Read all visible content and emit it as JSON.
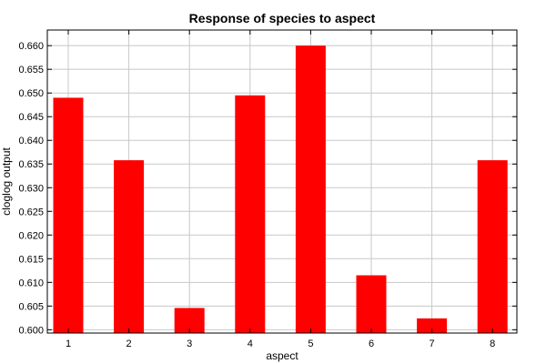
{
  "chart_data": {
    "type": "bar",
    "title": "Response of species to aspect",
    "xlabel": "aspect",
    "ylabel": "cloglog output",
    "categories": [
      "1",
      "2",
      "3",
      "4",
      "5",
      "6",
      "7",
      "8"
    ],
    "values": [
      0.649,
      0.6358,
      0.6046,
      0.6495,
      0.66,
      0.6115,
      0.6024,
      0.6358
    ],
    "ylim": [
      0.5993,
      0.6633
    ],
    "yticks": [
      "0.600",
      "0.605",
      "0.610",
      "0.615",
      "0.620",
      "0.625",
      "0.630",
      "0.635",
      "0.640",
      "0.645",
      "0.650",
      "0.655",
      "0.660"
    ],
    "ytick_values": [
      0.6,
      0.605,
      0.61,
      0.615,
      0.62,
      0.625,
      0.63,
      0.635,
      0.64,
      0.645,
      0.65,
      0.655,
      0.66
    ],
    "grid": true,
    "bar_color": "#ff0000"
  }
}
